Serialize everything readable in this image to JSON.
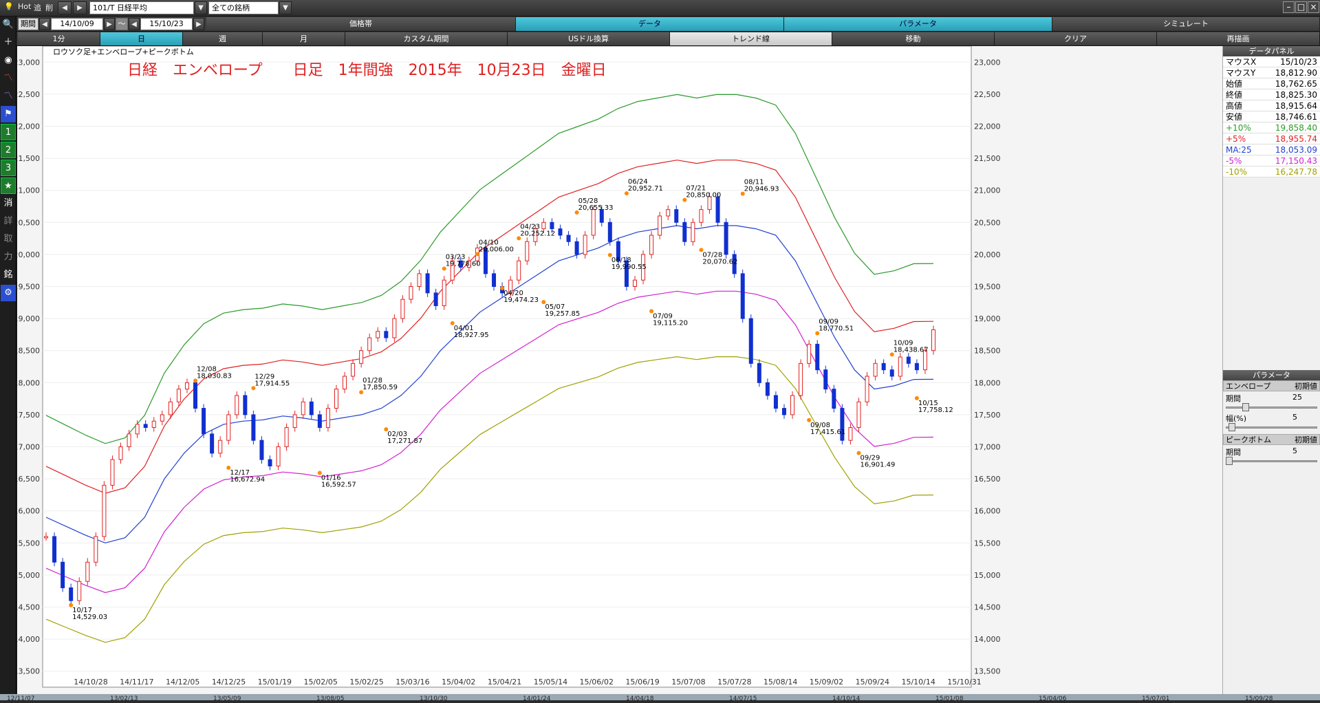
{
  "toolbar1": {
    "hot": "Hot",
    "tsui": "追",
    "sakujo": "削",
    "symbol": "101/T 日経平均",
    "filter": "全ての銘柄",
    "tab_price": "価格帯",
    "tab_data": "データ",
    "tab_param": "パラメータ",
    "tab_sim": "シミュレート"
  },
  "toolbar2": {
    "period_label": "期間",
    "from": "14/10/09",
    "tilde": "～",
    "to": "15/10/23"
  },
  "toolbar3": {
    "b1": "1分",
    "b2": "日",
    "b3": "週",
    "b4": "月",
    "b5": "カスタム期間",
    "b6": "USドル換算",
    "b7": "トレンド線",
    "b8": "移動",
    "b9": "クリア",
    "b10": "再描画"
  },
  "sidebar": {
    "n1": "1",
    "n2": "2",
    "n3": "3",
    "star": "★",
    "k1": "消",
    "k2": "詳",
    "k3": "取",
    "k4": "力",
    "k5": "銘"
  },
  "chart_header": "ロウソク足+エンベロープ+ピークボトム",
  "chart_title": "日経　エンベロープ　　日足　1年間強　2015年　10月23日　金曜日",
  "data_panel": {
    "title": "データパネル",
    "rows": [
      {
        "k": "マウスX",
        "v": "15/10/23",
        "c": "#000"
      },
      {
        "k": "マウスY",
        "v": "18,812.90",
        "c": "#000"
      },
      {
        "k": "始値",
        "v": "18,762.65",
        "c": "#000"
      },
      {
        "k": "終値",
        "v": "18,825.30",
        "c": "#000"
      },
      {
        "k": "高値",
        "v": "18,915.64",
        "c": "#000"
      },
      {
        "k": "安値",
        "v": "18,746.61",
        "c": "#000"
      },
      {
        "k": "+10%",
        "v": "19,858.40",
        "c": "#2a9a2a"
      },
      {
        "k": "+5%",
        "v": "18,955.74",
        "c": "#e02020"
      },
      {
        "k": "MA:25",
        "v": "18,053.09",
        "c": "#2040d0"
      },
      {
        "k": "-5%",
        "v": "17,150.43",
        "c": "#d020d0"
      },
      {
        "k": "-10%",
        "v": "16,247.78",
        "c": "#a0a000"
      }
    ]
  },
  "param_panel": {
    "title": "パラメータ",
    "env_label": "エンベロープ",
    "init1": "初期値",
    "period_label": "期間",
    "period_val": "25",
    "width_label": "幅(%)",
    "width_val": "5",
    "pb_label": "ピークボトム",
    "init2": "初期値",
    "pb_period_label": "期間",
    "pb_period_val": "5"
  },
  "chart_data": {
    "type": "line",
    "title": "日経　エンベロープ　　日足　1年間強　2015年　10月23日　金曜日",
    "ylim": [
      13250,
      23250
    ],
    "y_ticks": [
      "13,500",
      "14,000",
      "14,500",
      "15,000",
      "15,500",
      "16,000",
      "16,500",
      "17,000",
      "17,500",
      "18,000",
      "18,500",
      "19,000",
      "19,500",
      "20,000",
      "20,500",
      "21,000",
      "21,500",
      "22,000",
      "22,500",
      "23,000"
    ],
    "x_ticks": [
      "14/10/28",
      "14/11/17",
      "14/12/05",
      "14/12/25",
      "15/01/19",
      "15/02/05",
      "15/02/25",
      "15/03/16",
      "15/04/02",
      "15/04/21",
      "15/05/14",
      "15/06/02",
      "15/06/19",
      "15/07/08",
      "15/07/28",
      "15/08/14",
      "15/09/02",
      "15/09/24",
      "15/10/14",
      "15/10/31"
    ],
    "bottom_ticks": [
      "12/11/07",
      "13/02/13",
      "13/05/09",
      "13/08/05",
      "13/10/30",
      "14/01/24",
      "14/04/18",
      "14/07/15",
      "14/10/14",
      "15/01/08",
      "15/04/06",
      "15/07/01",
      "15/09/28"
    ],
    "ma": [
      15900,
      15760,
      15620,
      15500,
      15580,
      15900,
      16500,
      16900,
      17200,
      17350,
      17400,
      17420,
      17480,
      17450,
      17400,
      17450,
      17500,
      17600,
      17800,
      18100,
      18500,
      18800,
      19100,
      19300,
      19500,
      19700,
      19900,
      20000,
      20100,
      20250,
      20350,
      20400,
      20450,
      20400,
      20450,
      20450,
      20400,
      20300,
      19900,
      19300,
      18700,
      18200,
      17900,
      17950,
      18050,
      18053
    ],
    "series": [
      {
        "name": "+10%",
        "color": "#2a9a2a",
        "pct": 1.1
      },
      {
        "name": "+5%",
        "color": "#e02020",
        "pct": 1.05
      },
      {
        "name": "MA:25",
        "color": "#2040d0",
        "pct": 1.0
      },
      {
        "name": "-5%",
        "color": "#d020d0",
        "pct": 0.95
      },
      {
        "name": "-10%",
        "color": "#a0a000",
        "pct": 0.9
      }
    ],
    "candles": [
      15600,
      15200,
      14800,
      14600,
      14900,
      15200,
      15600,
      16400,
      16800,
      17000,
      17200,
      17350,
      17300,
      17400,
      17500,
      17700,
      17900,
      18000,
      17600,
      17200,
      16900,
      17100,
      17500,
      17800,
      17500,
      17100,
      16800,
      16700,
      17000,
      17300,
      17500,
      17700,
      17500,
      17300,
      17600,
      17900,
      18100,
      18300,
      18500,
      18700,
      18800,
      18700,
      19000,
      19300,
      19500,
      19700,
      19400,
      19200,
      19600,
      19900,
      19800,
      19900,
      20100,
      19700,
      19500,
      19400,
      19600,
      19900,
      20200,
      20400,
      20500,
      20400,
      20300,
      20200,
      20000,
      20300,
      20700,
      20500,
      20200,
      19900,
      19500,
      19600,
      20000,
      20300,
      20600,
      20700,
      20500,
      20200,
      20500,
      20700,
      20900,
      20500,
      20000,
      19700,
      19000,
      18300,
      18000,
      17800,
      17600,
      17500,
      17800,
      18300,
      18600,
      18200,
      17900,
      17600,
      17100,
      17300,
      17700,
      18100,
      18300,
      18200,
      18100,
      18400,
      18300,
      18200,
      18500,
      18825
    ]
  },
  "peaks": [
    {
      "d": "10/17",
      "v": "14,529.03",
      "bottom": true
    },
    {
      "d": "12/08",
      "v": "18,030.83",
      "bottom": false
    },
    {
      "d": "12/17",
      "v": "16,672.94",
      "bottom": true
    },
    {
      "d": "12/29",
      "v": "17,914.55",
      "bottom": false
    },
    {
      "d": "01/16",
      "v": "16,592.57",
      "bottom": true
    },
    {
      "d": "01/28",
      "v": "17,850.59",
      "bottom": false
    },
    {
      "d": "02/03",
      "v": "17,271.87",
      "bottom": true
    },
    {
      "d": "03/23",
      "v": "19,778.60",
      "bottom": false
    },
    {
      "d": "04/01",
      "v": "18,927.95",
      "bottom": true
    },
    {
      "d": "04/10",
      "v": "20,006.00",
      "bottom": false
    },
    {
      "d": "04/20",
      "v": "19,474.23",
      "bottom": true
    },
    {
      "d": "04/23",
      "v": "20,252.12",
      "bottom": false
    },
    {
      "d": "05/07",
      "v": "19,257.85",
      "bottom": true
    },
    {
      "d": "05/28",
      "v": "20,655.33",
      "bottom": false
    },
    {
      "d": "06/18",
      "v": "19,990.55",
      "bottom": true
    },
    {
      "d": "06/24",
      "v": "20,952.71",
      "bottom": false
    },
    {
      "d": "07/09",
      "v": "19,115.20",
      "bottom": true
    },
    {
      "d": "07/21",
      "v": "20,850.00",
      "bottom": false
    },
    {
      "d": "07/28",
      "v": "20,070.62",
      "bottom": true
    },
    {
      "d": "08/11",
      "v": "20,946.93",
      "bottom": false
    },
    {
      "d": "09/08",
      "v": "17,415.61",
      "bottom": true
    },
    {
      "d": "09/09",
      "v": "18,770.51",
      "bottom": false
    },
    {
      "d": "09/29",
      "v": "16,901.49",
      "bottom": true
    },
    {
      "d": "10/09",
      "v": "18,438.67",
      "bottom": false
    },
    {
      "d": "10/15",
      "v": "17,758.12",
      "bottom": true
    }
  ]
}
